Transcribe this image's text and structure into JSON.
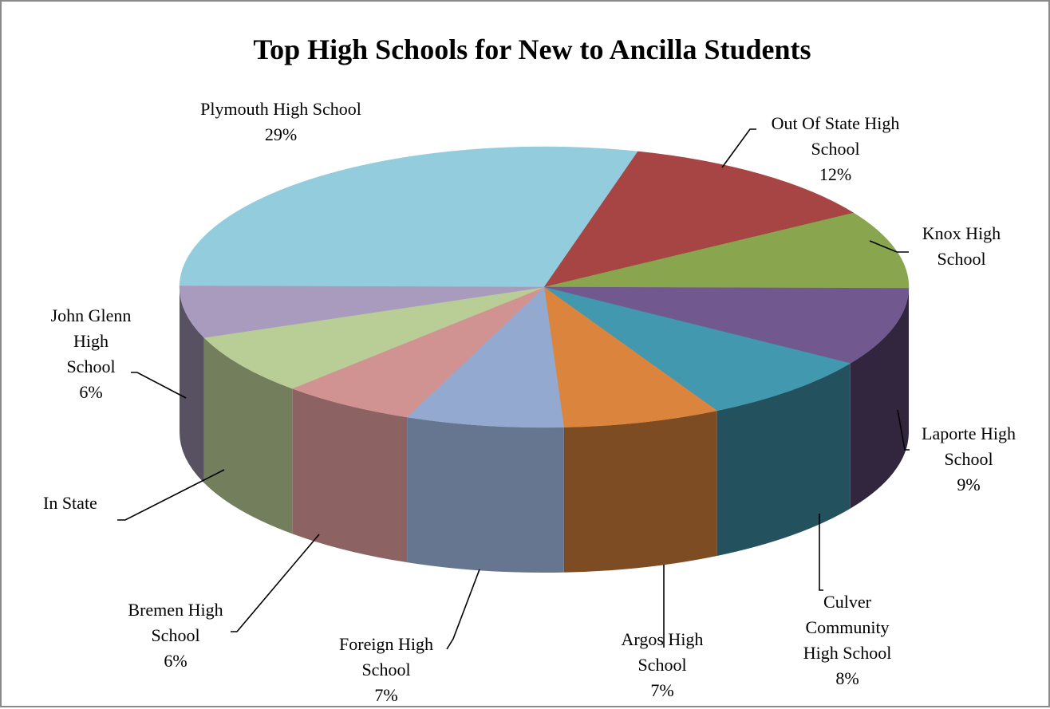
{
  "chart_data": {
    "type": "pie",
    "title": "Top High Schools for New to Ancilla Students",
    "slices": [
      {
        "name": "Plymouth High School",
        "lines": [
          "Plymouth High School"
        ],
        "percent": "29%",
        "value": 29,
        "color": "#93CDDD"
      },
      {
        "name": "Out Of State High School",
        "lines": [
          "Out Of State High",
          "School"
        ],
        "percent": "12%",
        "value": 12,
        "color": "#A64543"
      },
      {
        "name": "Knox High School",
        "lines": [
          "Knox High",
          "School"
        ],
        "percent": "",
        "value": 9,
        "color": "#89A54E"
      },
      {
        "name": "Laporte High School",
        "lines": [
          "Laporte High",
          "School"
        ],
        "percent": "9%",
        "value": 9,
        "color": "#71588F"
      },
      {
        "name": "Culver Community High School",
        "lines": [
          "Culver",
          "Community",
          "High School"
        ],
        "percent": "8%",
        "value": 8,
        "color": "#4198AF"
      },
      {
        "name": "Argos High School",
        "lines": [
          "Argos High",
          "School"
        ],
        "percent": "7%",
        "value": 7,
        "color": "#DB843D"
      },
      {
        "name": "Foreign High School",
        "lines": [
          "Foreign High",
          "School"
        ],
        "percent": "7%",
        "value": 7,
        "color": "#93A9CF"
      },
      {
        "name": "Bremen High School",
        "lines": [
          "Bremen High",
          "School"
        ],
        "percent": "6%",
        "value": 6,
        "color": "#D19392"
      },
      {
        "name": "In State",
        "lines": [
          "In State"
        ],
        "percent": "",
        "value": 7,
        "color": "#B9CD96"
      },
      {
        "name": "John Glenn High School",
        "lines": [
          "John Glenn",
          "High",
          "School"
        ],
        "percent": "6%",
        "value": 6,
        "color": "#A99BBD"
      }
    ],
    "legend": "none",
    "style": "3d-pie"
  }
}
